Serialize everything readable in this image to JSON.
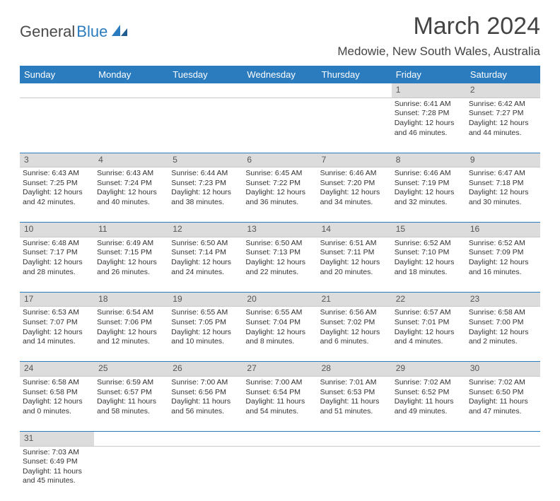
{
  "logo": {
    "part1": "General",
    "part2": "Blue"
  },
  "title": "March 2024",
  "location": "Medowie, New South Wales, Australia",
  "colors": {
    "header_bg": "#2b7bbf",
    "daynum_bg": "#dcdcdc",
    "rule": "#2b7bbf"
  },
  "day_headers": [
    "Sunday",
    "Monday",
    "Tuesday",
    "Wednesday",
    "Thursday",
    "Friday",
    "Saturday"
  ],
  "weeks": [
    {
      "nums": [
        "",
        "",
        "",
        "",
        "",
        "1",
        "2"
      ],
      "cells": [
        null,
        null,
        null,
        null,
        null,
        {
          "sr": "Sunrise: 6:41 AM",
          "ss": "Sunset: 7:28 PM",
          "d1": "Daylight: 12 hours",
          "d2": "and 46 minutes."
        },
        {
          "sr": "Sunrise: 6:42 AM",
          "ss": "Sunset: 7:27 PM",
          "d1": "Daylight: 12 hours",
          "d2": "and 44 minutes."
        }
      ]
    },
    {
      "nums": [
        "3",
        "4",
        "5",
        "6",
        "7",
        "8",
        "9"
      ],
      "cells": [
        {
          "sr": "Sunrise: 6:43 AM",
          "ss": "Sunset: 7:25 PM",
          "d1": "Daylight: 12 hours",
          "d2": "and 42 minutes."
        },
        {
          "sr": "Sunrise: 6:43 AM",
          "ss": "Sunset: 7:24 PM",
          "d1": "Daylight: 12 hours",
          "d2": "and 40 minutes."
        },
        {
          "sr": "Sunrise: 6:44 AM",
          "ss": "Sunset: 7:23 PM",
          "d1": "Daylight: 12 hours",
          "d2": "and 38 minutes."
        },
        {
          "sr": "Sunrise: 6:45 AM",
          "ss": "Sunset: 7:22 PM",
          "d1": "Daylight: 12 hours",
          "d2": "and 36 minutes."
        },
        {
          "sr": "Sunrise: 6:46 AM",
          "ss": "Sunset: 7:20 PM",
          "d1": "Daylight: 12 hours",
          "d2": "and 34 minutes."
        },
        {
          "sr": "Sunrise: 6:46 AM",
          "ss": "Sunset: 7:19 PM",
          "d1": "Daylight: 12 hours",
          "d2": "and 32 minutes."
        },
        {
          "sr": "Sunrise: 6:47 AM",
          "ss": "Sunset: 7:18 PM",
          "d1": "Daylight: 12 hours",
          "d2": "and 30 minutes."
        }
      ]
    },
    {
      "nums": [
        "10",
        "11",
        "12",
        "13",
        "14",
        "15",
        "16"
      ],
      "cells": [
        {
          "sr": "Sunrise: 6:48 AM",
          "ss": "Sunset: 7:17 PM",
          "d1": "Daylight: 12 hours",
          "d2": "and 28 minutes."
        },
        {
          "sr": "Sunrise: 6:49 AM",
          "ss": "Sunset: 7:15 PM",
          "d1": "Daylight: 12 hours",
          "d2": "and 26 minutes."
        },
        {
          "sr": "Sunrise: 6:50 AM",
          "ss": "Sunset: 7:14 PM",
          "d1": "Daylight: 12 hours",
          "d2": "and 24 minutes."
        },
        {
          "sr": "Sunrise: 6:50 AM",
          "ss": "Sunset: 7:13 PM",
          "d1": "Daylight: 12 hours",
          "d2": "and 22 minutes."
        },
        {
          "sr": "Sunrise: 6:51 AM",
          "ss": "Sunset: 7:11 PM",
          "d1": "Daylight: 12 hours",
          "d2": "and 20 minutes."
        },
        {
          "sr": "Sunrise: 6:52 AM",
          "ss": "Sunset: 7:10 PM",
          "d1": "Daylight: 12 hours",
          "d2": "and 18 minutes."
        },
        {
          "sr": "Sunrise: 6:52 AM",
          "ss": "Sunset: 7:09 PM",
          "d1": "Daylight: 12 hours",
          "d2": "and 16 minutes."
        }
      ]
    },
    {
      "nums": [
        "17",
        "18",
        "19",
        "20",
        "21",
        "22",
        "23"
      ],
      "cells": [
        {
          "sr": "Sunrise: 6:53 AM",
          "ss": "Sunset: 7:07 PM",
          "d1": "Daylight: 12 hours",
          "d2": "and 14 minutes."
        },
        {
          "sr": "Sunrise: 6:54 AM",
          "ss": "Sunset: 7:06 PM",
          "d1": "Daylight: 12 hours",
          "d2": "and 12 minutes."
        },
        {
          "sr": "Sunrise: 6:55 AM",
          "ss": "Sunset: 7:05 PM",
          "d1": "Daylight: 12 hours",
          "d2": "and 10 minutes."
        },
        {
          "sr": "Sunrise: 6:55 AM",
          "ss": "Sunset: 7:04 PM",
          "d1": "Daylight: 12 hours",
          "d2": "and 8 minutes."
        },
        {
          "sr": "Sunrise: 6:56 AM",
          "ss": "Sunset: 7:02 PM",
          "d1": "Daylight: 12 hours",
          "d2": "and 6 minutes."
        },
        {
          "sr": "Sunrise: 6:57 AM",
          "ss": "Sunset: 7:01 PM",
          "d1": "Daylight: 12 hours",
          "d2": "and 4 minutes."
        },
        {
          "sr": "Sunrise: 6:58 AM",
          "ss": "Sunset: 7:00 PM",
          "d1": "Daylight: 12 hours",
          "d2": "and 2 minutes."
        }
      ]
    },
    {
      "nums": [
        "24",
        "25",
        "26",
        "27",
        "28",
        "29",
        "30"
      ],
      "cells": [
        {
          "sr": "Sunrise: 6:58 AM",
          "ss": "Sunset: 6:58 PM",
          "d1": "Daylight: 12 hours",
          "d2": "and 0 minutes."
        },
        {
          "sr": "Sunrise: 6:59 AM",
          "ss": "Sunset: 6:57 PM",
          "d1": "Daylight: 11 hours",
          "d2": "and 58 minutes."
        },
        {
          "sr": "Sunrise: 7:00 AM",
          "ss": "Sunset: 6:56 PM",
          "d1": "Daylight: 11 hours",
          "d2": "and 56 minutes."
        },
        {
          "sr": "Sunrise: 7:00 AM",
          "ss": "Sunset: 6:54 PM",
          "d1": "Daylight: 11 hours",
          "d2": "and 54 minutes."
        },
        {
          "sr": "Sunrise: 7:01 AM",
          "ss": "Sunset: 6:53 PM",
          "d1": "Daylight: 11 hours",
          "d2": "and 51 minutes."
        },
        {
          "sr": "Sunrise: 7:02 AM",
          "ss": "Sunset: 6:52 PM",
          "d1": "Daylight: 11 hours",
          "d2": "and 49 minutes."
        },
        {
          "sr": "Sunrise: 7:02 AM",
          "ss": "Sunset: 6:50 PM",
          "d1": "Daylight: 11 hours",
          "d2": "and 47 minutes."
        }
      ]
    },
    {
      "nums": [
        "31",
        "",
        "",
        "",
        "",
        "",
        ""
      ],
      "cells": [
        {
          "sr": "Sunrise: 7:03 AM",
          "ss": "Sunset: 6:49 PM",
          "d1": "Daylight: 11 hours",
          "d2": "and 45 minutes."
        },
        null,
        null,
        null,
        null,
        null,
        null
      ]
    }
  ]
}
